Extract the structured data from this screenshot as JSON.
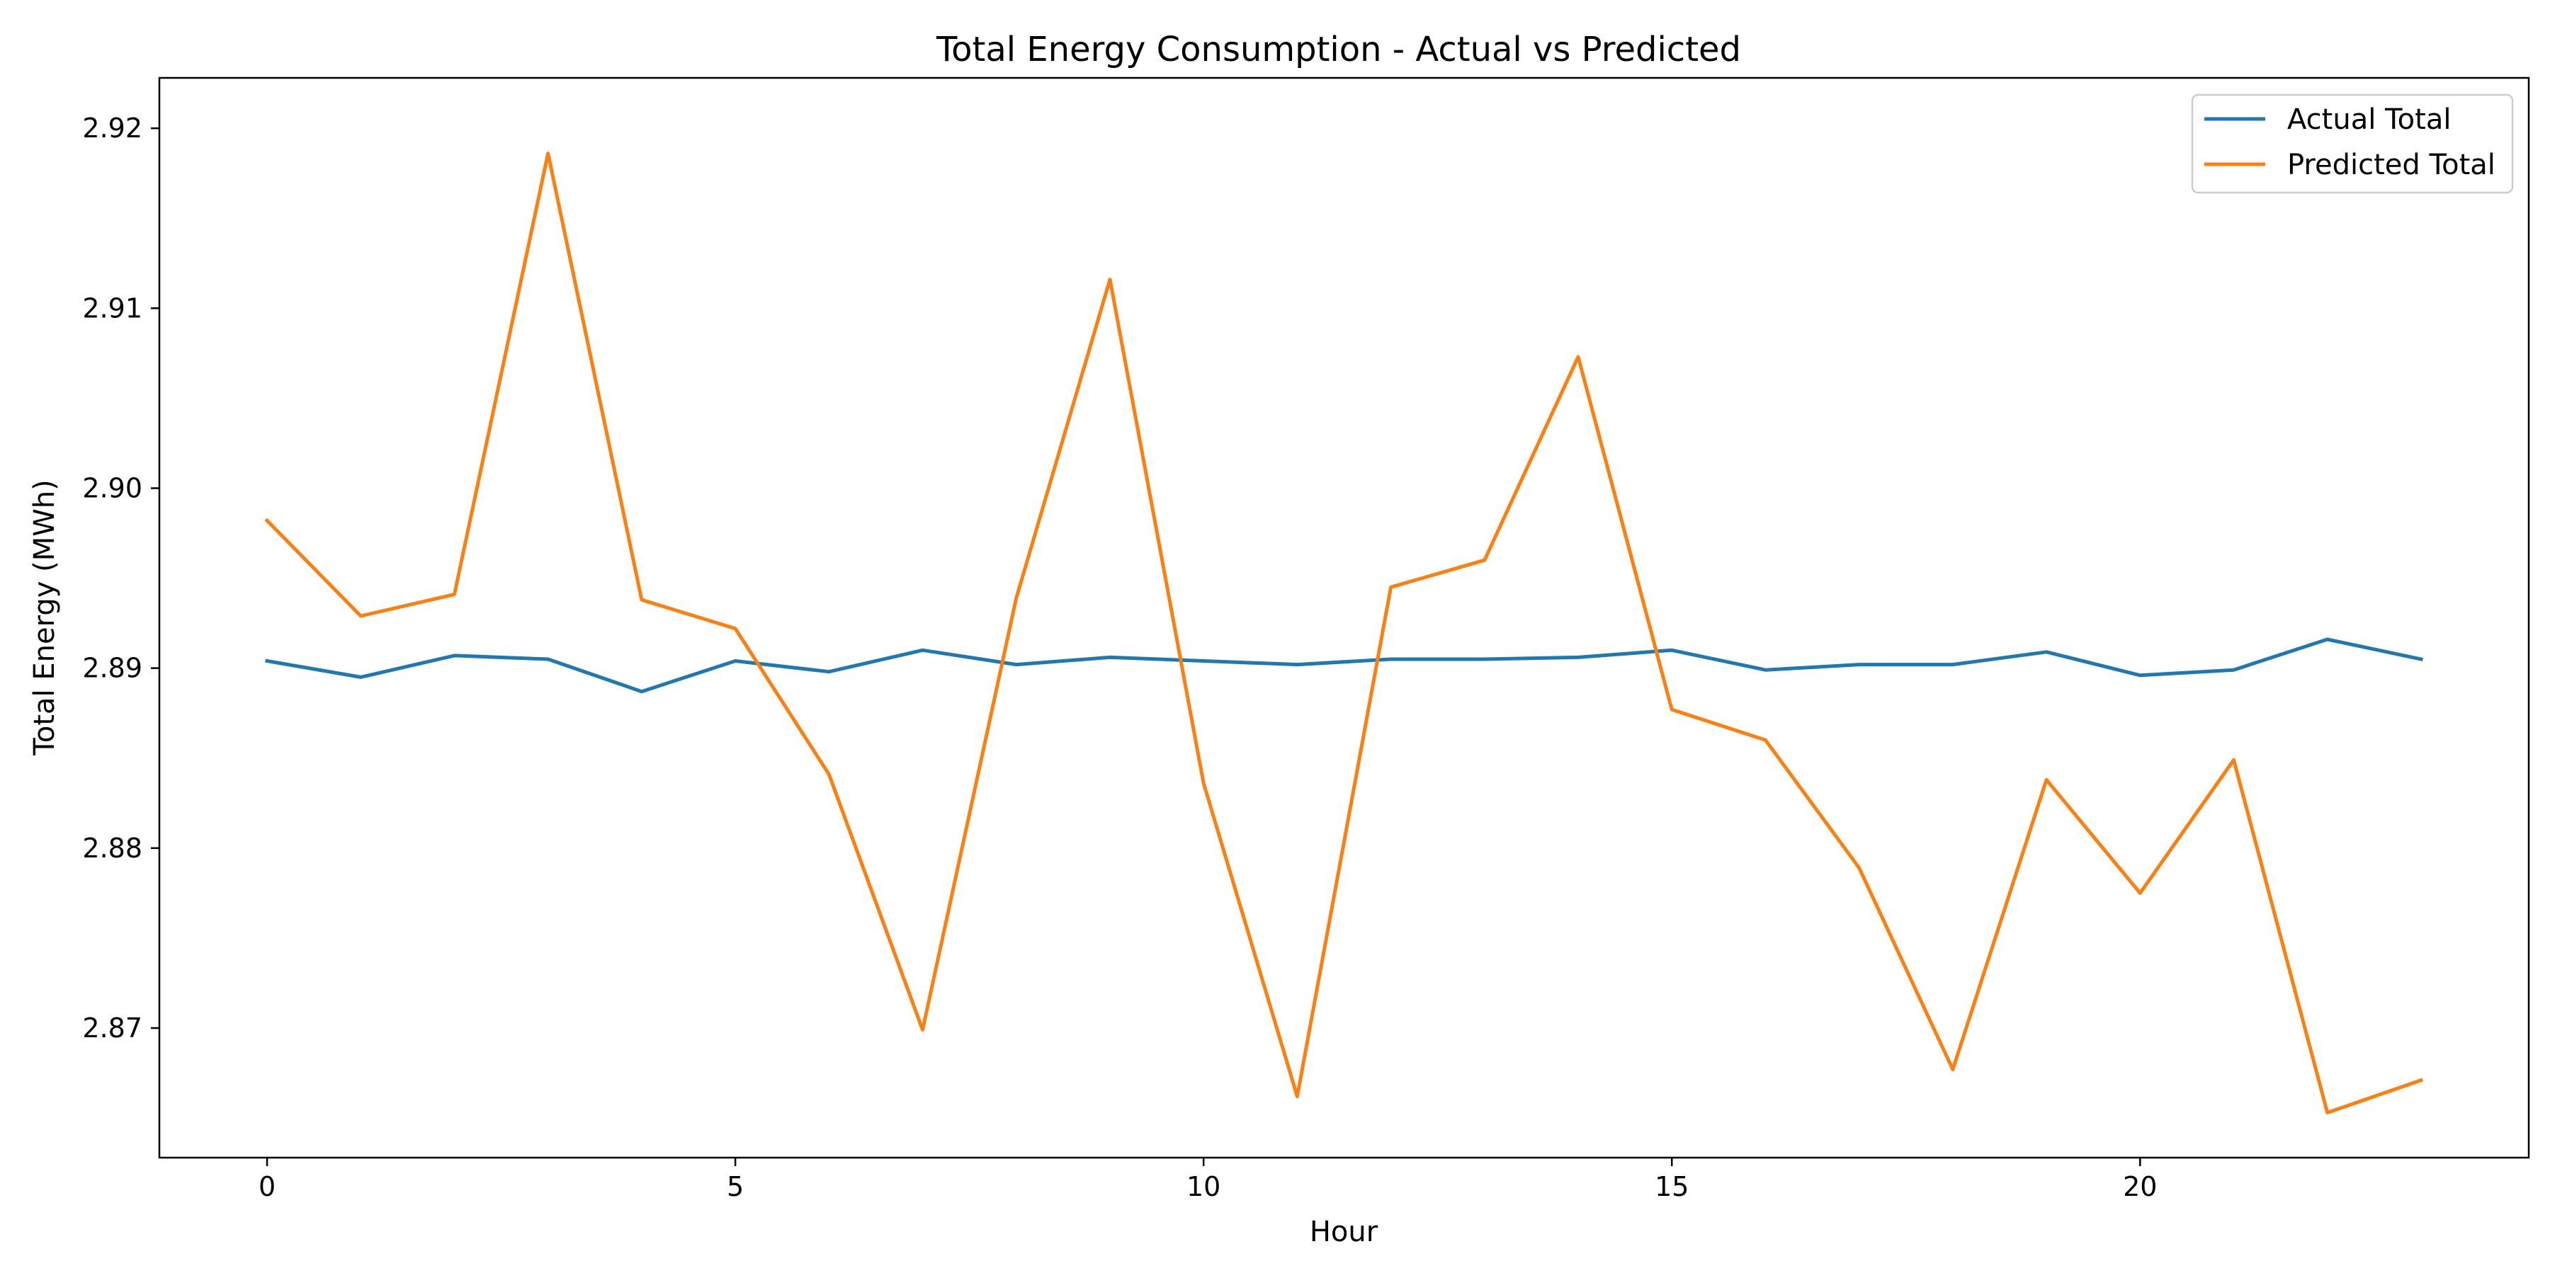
{
  "chart_data": {
    "type": "line",
    "title": "Total Energy Consumption - Actual vs Predicted",
    "xlabel": "Hour",
    "ylabel": "Total Energy (MWh)",
    "xlim": [
      -1.15,
      24.15
    ],
    "ylim": [
      2.8628,
      2.9228
    ],
    "xticks": [
      0,
      5,
      10,
      15,
      20
    ],
    "yticks": [
      2.87,
      2.88,
      2.89,
      2.9,
      2.91,
      2.92
    ],
    "ytick_labels": [
      "2.87",
      "2.88",
      "2.89",
      "2.90",
      "2.91",
      "2.92"
    ],
    "grid": false,
    "legend_position": "top-right",
    "x": [
      0,
      1,
      2,
      3,
      4,
      5,
      6,
      7,
      8,
      9,
      10,
      11,
      12,
      13,
      14,
      15,
      16,
      17,
      18,
      19,
      20,
      21,
      22,
      23
    ],
    "series": [
      {
        "name": "Actual Total",
        "color": "#1f77b4",
        "values": [
          2.8904,
          2.8895,
          2.8907,
          2.8905,
          2.8887,
          2.8904,
          2.8898,
          2.891,
          2.8902,
          2.8906,
          2.8904,
          2.8902,
          2.8905,
          2.8905,
          2.8906,
          2.891,
          2.8899,
          2.8902,
          2.8902,
          2.8909,
          2.8896,
          2.8899,
          2.8916,
          2.8905
        ]
      },
      {
        "name": "Predicted Total",
        "color": "#ff7f0e",
        "values": [
          2.8982,
          2.8929,
          2.8941,
          2.9186,
          2.8938,
          2.8922,
          2.8841,
          2.8699,
          2.8939,
          2.9116,
          2.8836,
          2.8662,
          2.8945,
          2.896,
          2.9073,
          2.8877,
          2.886,
          2.8789,
          2.8677,
          2.8838,
          2.8775,
          2.8849,
          2.8653,
          2.8671
        ]
      }
    ]
  }
}
